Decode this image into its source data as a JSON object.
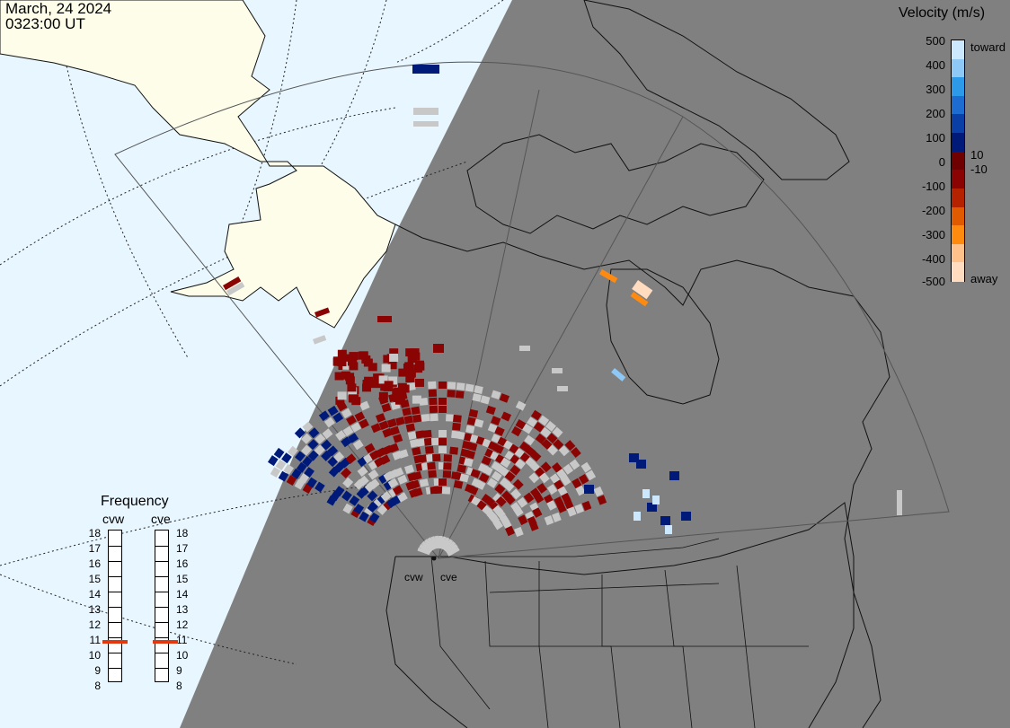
{
  "header": {
    "date": "March, 24 2024",
    "time": "0323:00 UT"
  },
  "colors": {
    "sea_day": "#e8f6ff",
    "land_day": "#fdfdea",
    "night": "#808080",
    "ground_scatter": "#c8c8c8",
    "fov_line": "#555555"
  },
  "legend": {
    "title": "Velocity (m/s)",
    "ticks": [
      "500",
      "400",
      "300",
      "200",
      "100",
      "10",
      "0",
      "-10",
      "-100",
      "-200",
      "-300",
      "-400",
      "-500"
    ],
    "toward_label": "toward",
    "away_label": "away",
    "scale_colors": [
      "#cce8ff",
      "#8ec8f6",
      "#2c9ae8",
      "#1d6cd1",
      "#0a3fa8",
      "#001a7a",
      "#6e0000",
      "#8a0404",
      "#b52200",
      "#e05a00",
      "#ff8a10",
      "#ffc08a",
      "#ffdcc0"
    ]
  },
  "frequency": {
    "title": "Frequency",
    "radars": [
      {
        "code": "cvw",
        "value_mhz": 11
      },
      {
        "code": "cve",
        "value_mhz": 11
      }
    ],
    "scale": [
      "18",
      "17",
      "16",
      "15",
      "14",
      "13",
      "12",
      "11",
      "10",
      "9",
      "8"
    ]
  },
  "sites": {
    "west": "cvw",
    "east": "cve"
  }
}
